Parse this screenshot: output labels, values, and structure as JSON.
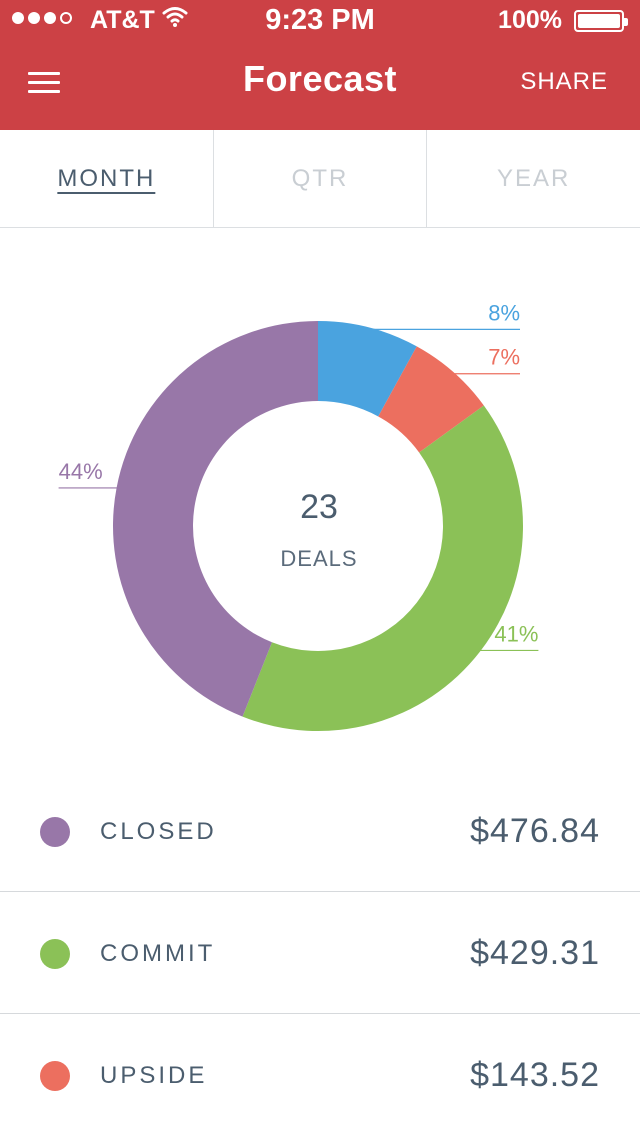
{
  "status_bar": {
    "carrier": "AT&T",
    "time": "9:23 PM",
    "battery": "100%"
  },
  "header": {
    "title": "Forecast",
    "share_label": "SHARE",
    "background_color": "#cc4145"
  },
  "tabs": [
    {
      "label": "MONTH",
      "active": true
    },
    {
      "label": "QTR",
      "active": false
    },
    {
      "label": "YEAR",
      "active": false
    }
  ],
  "chart_data": {
    "type": "pie",
    "center_value": "23",
    "center_label": "DEALS",
    "slices": [
      {
        "label_text": "8%",
        "value": 8,
        "color": "#4aa3df"
      },
      {
        "label_text": "7%",
        "value": 7,
        "color": "#ec6f5f"
      },
      {
        "label_text": "41%",
        "value": 41,
        "color": "#8bc157"
      },
      {
        "label_text": "44%",
        "value": 44,
        "color": "#9877a8"
      }
    ]
  },
  "legend": [
    {
      "label": "CLOSED",
      "value": "$476.84",
      "color": "#9877a8"
    },
    {
      "label": "COMMIT",
      "value": "$429.31",
      "color": "#8bc157"
    },
    {
      "label": "UPSIDE",
      "value": "$143.52",
      "color": "#ec6f5f"
    }
  ]
}
